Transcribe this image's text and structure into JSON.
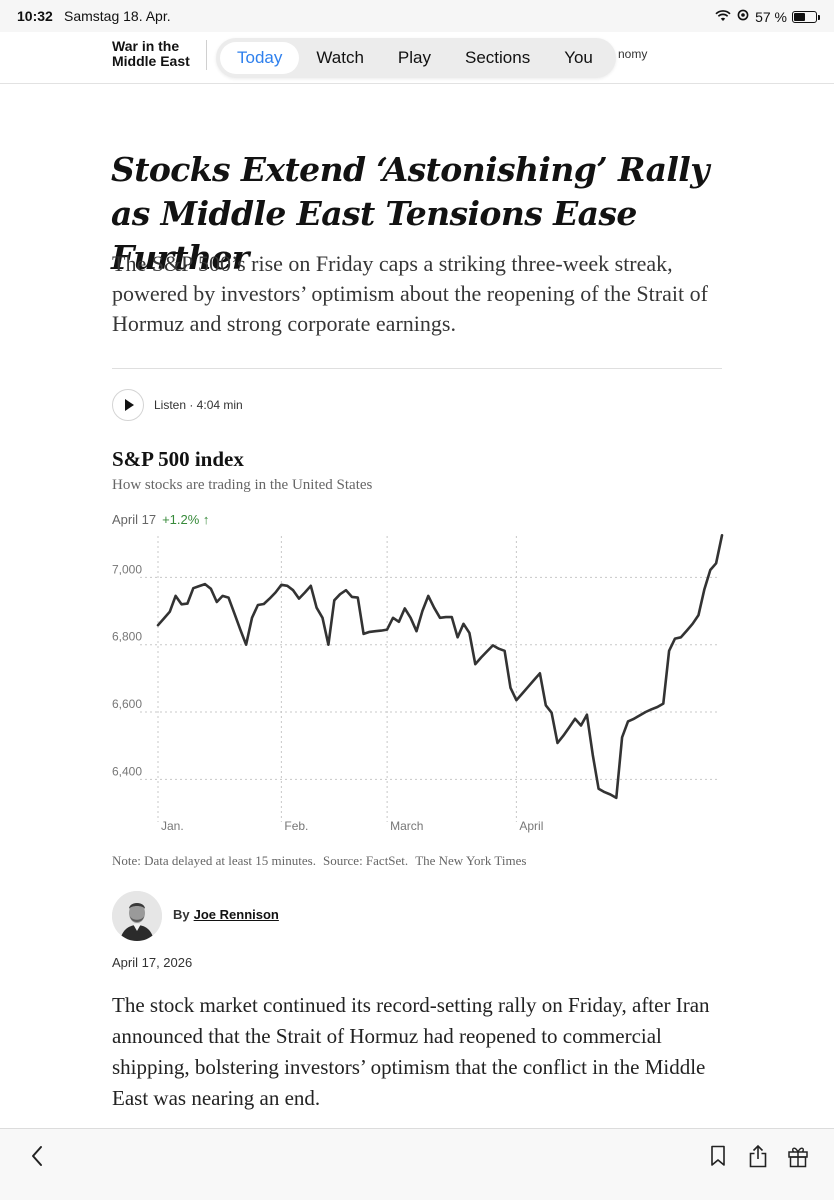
{
  "status_bar": {
    "time": "10:32",
    "date": "Samstag 18. Apr.",
    "battery": "57 %",
    "battery_level": 0.57
  },
  "nav": {
    "section_label": "War in the Middle East",
    "tabs": [
      {
        "label": "Today",
        "active": true
      },
      {
        "label": "Watch",
        "active": false
      },
      {
        "label": "Play",
        "active": false
      },
      {
        "label": "Sections",
        "active": false
      },
      {
        "label": "You",
        "active": false
      }
    ],
    "overflow_text": "nomy",
    "active_color": "#2f80ed"
  },
  "article": {
    "headline": "Stocks Extend ‘Astonishing’ Rally as Middle East Tensions Ease Further",
    "summary": "The S&P 500’s rise on Friday caps a striking three-week streak, powered by investors’ optimism about the reopening of the Strait of Hormuz and strong corporate earnings.",
    "listen_label": "Listen · 4:04 min",
    "byline_prefix": "By",
    "author": "Joe Rennison",
    "pub_date": "April 17, 2026",
    "body_first_paragraph": "The stock market continued its record-setting rally on Friday, after Iran announced that the Strait of Hormuz had reopened to commercial shipping, bolstering investors’ optimism that the conflict in the Middle East was nearing an end."
  },
  "chart_data": {
    "type": "line",
    "title": "S&P 500 index",
    "subtitle": "How stocks are trading in the United States",
    "last_date_label": "April 17",
    "change_label": "+1.2% ↑",
    "change_color": "#378a3a",
    "line_color": "#333333",
    "xlabel": "",
    "ylabel": "",
    "ylim": [
      6300,
      7120
    ],
    "y_ticks": [
      {
        "value": 7000,
        "label": "7,000"
      },
      {
        "value": 6800,
        "label": "6,800"
      },
      {
        "value": 6600,
        "label": "6,600"
      },
      {
        "value": 6400,
        "label": "6,400"
      }
    ],
    "x_ticks": [
      {
        "index": 0,
        "label": "Jan."
      },
      {
        "index": 21,
        "label": "Feb."
      },
      {
        "index": 39,
        "label": "March"
      },
      {
        "index": 61,
        "label": "April"
      }
    ],
    "grid": "dotted",
    "series": [
      {
        "values": [
          6858,
          6878,
          6898,
          6945,
          6920,
          6922,
          6968,
          6974,
          6980,
          6966,
          6927,
          6945,
          6940,
          6893,
          6845,
          6800,
          6880,
          6918,
          6921,
          6937,
          6955,
          6978,
          6975,
          6962,
          6937,
          6955,
          6975,
          6910,
          6880,
          6800,
          6932,
          6950,
          6962,
          6942,
          6940,
          6832,
          6838,
          6840,
          6842,
          6845,
          6880,
          6868,
          6908,
          6880,
          6840,
          6900,
          6945,
          6910,
          6880,
          6882,
          6882,
          6822,
          6862,
          6835,
          6742,
          6762,
          6780,
          6798,
          6788,
          6782,
          6672,
          6635,
          6655,
          6675,
          6695,
          6715,
          6620,
          6598,
          6508,
          6530,
          6555,
          6580,
          6560,
          6592,
          6472,
          6372,
          6362,
          6355,
          6345,
          6525,
          6572,
          6580,
          6590,
          6600,
          6608,
          6615,
          6625,
          6782,
          6818,
          6822,
          6842,
          6862,
          6888,
          6965,
          7022,
          7042,
          7125
        ]
      }
    ],
    "note_parts": [
      "Note: Data delayed at least 15 minutes.",
      "Source: FactSet.",
      "The New York Times"
    ]
  },
  "toolbar": {
    "icons": [
      "back-chevron-icon",
      "bookmark-icon",
      "share-icon",
      "gift-icon"
    ]
  }
}
